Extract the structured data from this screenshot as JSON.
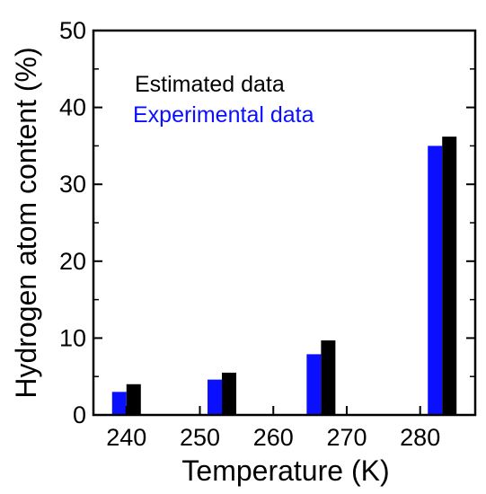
{
  "chart_data": {
    "type": "bar",
    "x": [
      240,
      250,
      260,
      270,
      280
    ],
    "xlabel": "Temperature (K)",
    "ylabel": "Hydrogen atom content (%)",
    "xlim": [
      235.5,
      287.5
    ],
    "ylim": [
      0,
      50
    ],
    "yticks": [
      0,
      10,
      20,
      30,
      40,
      50
    ],
    "series": [
      {
        "name": "Experimental data",
        "color": "#0a10ff",
        "points": [
          [
            240,
            3.0
          ],
          [
            253,
            4.6
          ],
          [
            266.5,
            7.9
          ],
          [
            283,
            35.0
          ]
        ]
      },
      {
        "name": "Estimated data",
        "color": "#000000",
        "points": [
          [
            240,
            4.0
          ],
          [
            253,
            5.5
          ],
          [
            266.5,
            9.7
          ],
          [
            283,
            36.2
          ]
        ]
      }
    ],
    "legend_position": "top-left",
    "grid": false
  }
}
